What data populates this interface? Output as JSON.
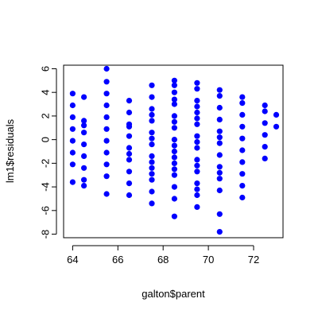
{
  "chart_data": {
    "type": "scatter",
    "xlabel": "galton$parent",
    "ylabel": "lm1$residuals",
    "xlim": [
      63.6,
      73.3
    ],
    "ylim": [
      -8.3,
      6.3
    ],
    "xticks": [
      64,
      66,
      68,
      70,
      72
    ],
    "yticks": [
      -8,
      -6,
      -4,
      -2,
      0,
      2,
      4,
      6
    ],
    "grid": false,
    "point_color": "#0000ff",
    "series": [
      {
        "x": [
          64,
          64,
          64,
          64,
          64,
          64,
          64,
          64,
          64.5,
          64.5,
          64.5,
          64.5,
          64.5,
          64.5,
          64.5,
          64.5,
          64.5,
          65.5,
          65.5,
          65.5,
          65.5,
          65.5,
          65.5,
          65.5,
          65.5,
          65.5,
          65.5,
          65.5,
          66.5,
          66.5,
          66.5,
          66.5,
          66.5,
          66.5,
          66.5,
          66.5,
          66.5,
          66.5,
          66.5,
          67.5,
          67.5,
          67.5,
          67.5,
          67.5,
          67.5,
          67.5,
          67.5,
          67.5,
          67.5,
          67.5,
          67.5,
          67.5,
          67.5,
          67.5,
          68.5,
          68.5,
          68.5,
          68.5,
          68.5,
          68.5,
          68.5,
          68.5,
          68.5,
          68.5,
          68.5,
          68.5,
          68.5,
          68.5,
          68.5,
          68.5,
          68.5,
          68.5,
          69.5,
          69.5,
          69.5,
          69.5,
          69.5,
          69.5,
          69.5,
          69.5,
          69.5,
          69.5,
          69.5,
          69.5,
          69.5,
          69.5,
          69.5,
          69.5,
          69.5,
          70.5,
          70.5,
          70.5,
          70.5,
          70.5,
          70.5,
          70.5,
          70.5,
          70.5,
          70.5,
          70.5,
          70.5,
          70.5,
          70.5,
          71.5,
          71.5,
          71.5,
          71.5,
          71.5,
          71.5,
          71.5,
          71.5,
          71.5,
          71.5,
          72.5,
          72.5,
          72.5,
          72.5,
          72.5,
          72.5,
          73,
          73
        ],
        "y": [
          3.9,
          2.9,
          1.9,
          0.9,
          -0.1,
          -1.1,
          -2.1,
          -3.6,
          3.6,
          1.6,
          0.6,
          -0.4,
          -1.4,
          -2.4,
          -3.4,
          -3.9,
          1.2,
          6.0,
          4.9,
          3.9,
          2.9,
          1.9,
          0.9,
          -0.1,
          -1.1,
          -2.1,
          -3.1,
          -4.6,
          3.3,
          2.3,
          1.3,
          0.3,
          -0.7,
          -1.7,
          -2.7,
          -3.7,
          -4.7,
          1.1,
          -1.2,
          4.6,
          3.6,
          2.6,
          1.6,
          0.6,
          -0.4,
          -1.4,
          -2.4,
          -3.4,
          -4.4,
          -5.4,
          2.1,
          0.1,
          -2.9,
          -1.9,
          5.0,
          4.0,
          3.0,
          2.0,
          1.0,
          0.0,
          -1.0,
          -2.0,
          -3.0,
          -4.0,
          -5.0,
          -6.5,
          1.5,
          -0.5,
          -2.5,
          4.6,
          3.4,
          -1.5,
          4.8,
          4.3,
          3.3,
          2.3,
          1.3,
          0.3,
          -0.7,
          -1.7,
          -2.7,
          -3.7,
          -4.7,
          -5.7,
          1.8,
          -0.2,
          2.8,
          -2.2,
          -4.2,
          4.2,
          3.7,
          2.7,
          1.7,
          0.7,
          -0.3,
          -1.3,
          -2.3,
          -3.3,
          -4.3,
          -6.3,
          -7.8,
          -2.8,
          0.2,
          3.6,
          3.1,
          2.1,
          1.1,
          0.1,
          -0.9,
          -1.9,
          -2.9,
          -3.9,
          -4.9,
          2.9,
          2.4,
          1.4,
          0.4,
          -0.6,
          -1.6,
          2.1,
          1.1
        ]
      }
    ]
  }
}
